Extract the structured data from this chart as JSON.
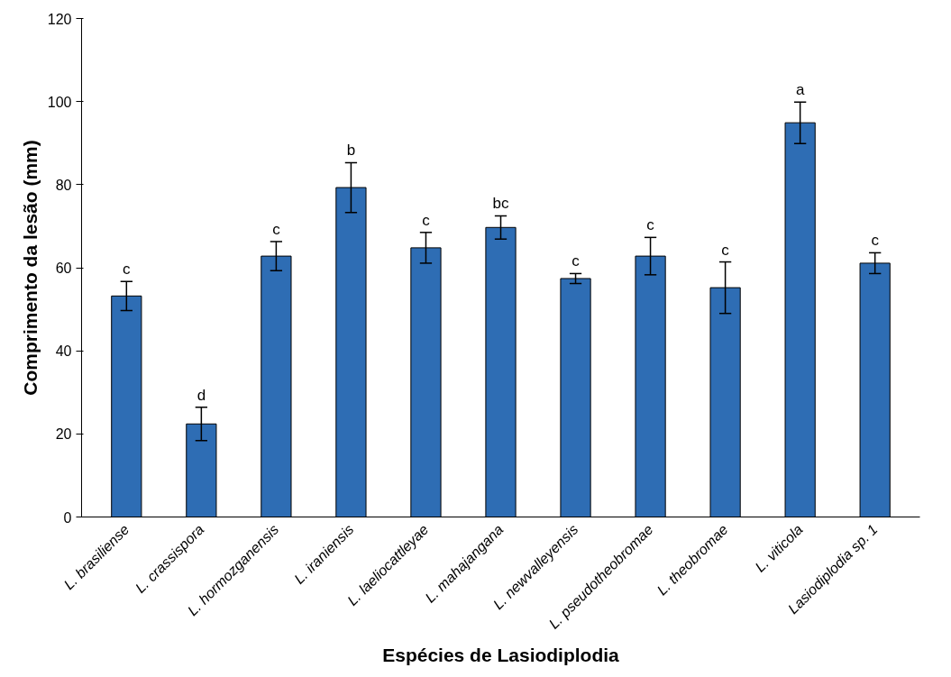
{
  "chart_data": {
    "type": "bar",
    "xlabel": "Espécies de Lasiodiplodia",
    "ylabel": "Comprimento da lesão (mm)",
    "categories": [
      "L. brasiliense",
      "L. crassispora",
      "L. hormozganensis",
      "L. iraniensis",
      "L. laeliocattleyae",
      "L. mahajangana",
      "L. newvalleyensis",
      "L. pseudotheobromae",
      "L. theobromae",
      "L. viticola",
      "Lasiodiplodia sp. 1"
    ],
    "values": [
      53.2,
      22.4,
      62.8,
      79.3,
      64.8,
      69.7,
      57.4,
      62.8,
      55.2,
      94.9,
      61.1
    ],
    "errors": [
      3.5,
      4,
      3.5,
      6,
      3.7,
      2.8,
      1.2,
      4.5,
      6.2,
      5,
      2.5
    ],
    "color": "#2e6db4",
    "ylim": [
      0,
      120
    ],
    "yticks": [
      0,
      20,
      40,
      60,
      80,
      100,
      120
    ],
    "grid": false,
    "annotations": [
      {
        "text": "c",
        "x": "L. brasiliense",
        "y": 56.7
      },
      {
        "text": "d",
        "x": "L. crassispora",
        "y": 26.4
      },
      {
        "text": "c",
        "x": "L. hormozganensis",
        "y": 66.3
      },
      {
        "text": "b",
        "x": "L. iraniensis",
        "y": 85.3
      },
      {
        "text": "c",
        "x": "L. laeliocattleyae",
        "y": 68.5
      },
      {
        "text": "bc",
        "x": "L. mahajangana",
        "y": 72.5
      },
      {
        "text": "c",
        "x": "L. newvalleyensis",
        "y": 58.6
      },
      {
        "text": "c",
        "x": "L. pseudotheobromae",
        "y": 67.3
      },
      {
        "text": "c",
        "x": "L. theobromae",
        "y": 61.4
      },
      {
        "text": "a",
        "x": "L. viticola",
        "y": 99.9
      },
      {
        "text": "c",
        "x": "Lasiodiplodia sp. 1",
        "y": 63.6
      }
    ]
  }
}
